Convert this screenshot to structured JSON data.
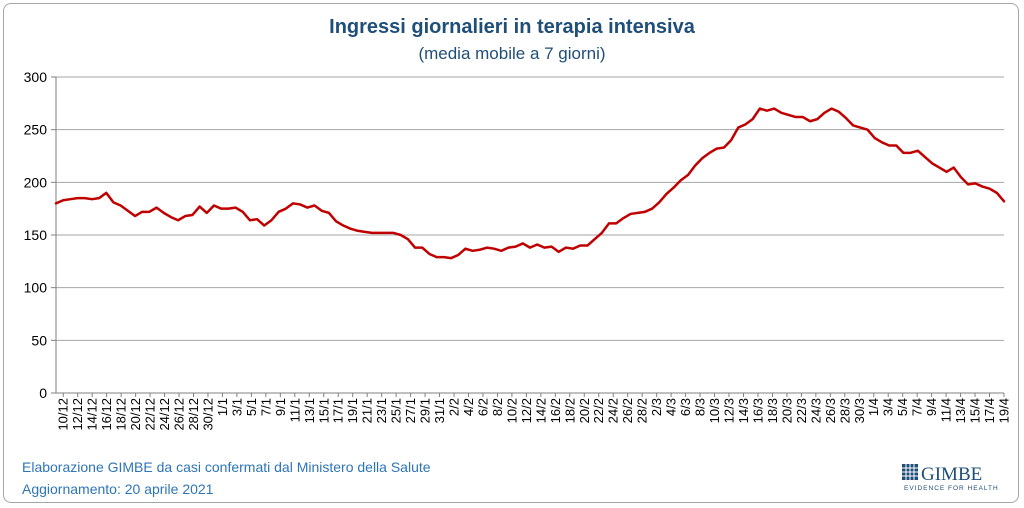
{
  "chart_data": {
    "type": "line",
    "title": "Ingressi giornalieri in terapia intensiva",
    "subtitle": "(media mobile a 7 giorni)",
    "xlabel": "",
    "ylabel": "",
    "ylim": [
      0,
      300
    ],
    "yticks": [
      0,
      50,
      100,
      150,
      200,
      250,
      300
    ],
    "grid": true,
    "x_tick_labels": [
      "10/12",
      "12/12",
      "14/12",
      "16/12",
      "18/12",
      "20/12",
      "22/12",
      "24/12",
      "26/12",
      "28/12",
      "30/12",
      "1/1",
      "3/1",
      "5/1",
      "7/1",
      "9/1",
      "11/1",
      "13/1",
      "15/1",
      "17/1",
      "19/1",
      "21/1",
      "23/1",
      "25/1",
      "27/1",
      "29/1",
      "31/1",
      "2/2",
      "4/2",
      "6/2",
      "8/2",
      "10/2",
      "12/2",
      "14/2",
      "16/2",
      "18/2",
      "20/2",
      "22/2",
      "24/2",
      "26/2",
      "28/2",
      "2/3",
      "4/3",
      "6/3",
      "8/3",
      "10/3",
      "12/3",
      "14/3",
      "16/3",
      "18/3",
      "20/3",
      "22/3",
      "24/3",
      "26/3",
      "28/3",
      "30/3",
      "1/4",
      "3/4",
      "5/4",
      "7/4",
      "9/4",
      "11/4",
      "13/4",
      "15/4",
      "17/4",
      "19/4"
    ],
    "series": [
      {
        "color": "#c00000",
        "values": [
          180,
          183,
          184,
          185,
          185,
          184,
          185,
          190,
          181,
          178,
          173,
          168,
          172,
          172,
          176,
          171,
          167,
          164,
          168,
          169,
          177,
          171,
          178,
          175,
          175,
          176,
          172,
          164,
          165,
          159,
          164,
          172,
          175,
          180,
          179,
          176,
          178,
          173,
          171,
          163,
          159,
          156,
          154,
          153,
          152,
          152,
          152,
          152,
          150,
          146,
          138,
          138,
          132,
          129,
          129,
          128,
          131,
          137,
          135,
          136,
          138,
          137,
          135,
          138,
          139,
          142,
          138,
          141,
          138,
          139,
          134,
          138,
          137,
          140,
          140,
          146,
          152,
          161,
          161,
          166,
          170,
          171,
          172,
          175,
          181,
          189,
          195,
          202,
          207,
          216,
          223,
          228,
          232,
          233,
          240,
          252,
          255,
          260,
          270,
          268,
          270,
          266,
          264,
          262,
          262,
          258,
          260,
          266,
          270,
          267,
          261,
          254,
          252,
          250,
          242,
          238,
          235,
          235,
          228,
          228,
          230,
          224,
          218,
          214,
          210,
          214,
          205,
          198,
          199,
          196,
          194,
          190,
          182
        ]
      }
    ]
  },
  "footer": {
    "line1": "Elaborazione GIMBE da casi confermati dal Ministero della Salute",
    "line2": "Aggiornamento: 20 aprile 2021"
  },
  "logo": {
    "name": "GIMBE",
    "tagline": "EVIDENCE FOR HEALTH"
  }
}
